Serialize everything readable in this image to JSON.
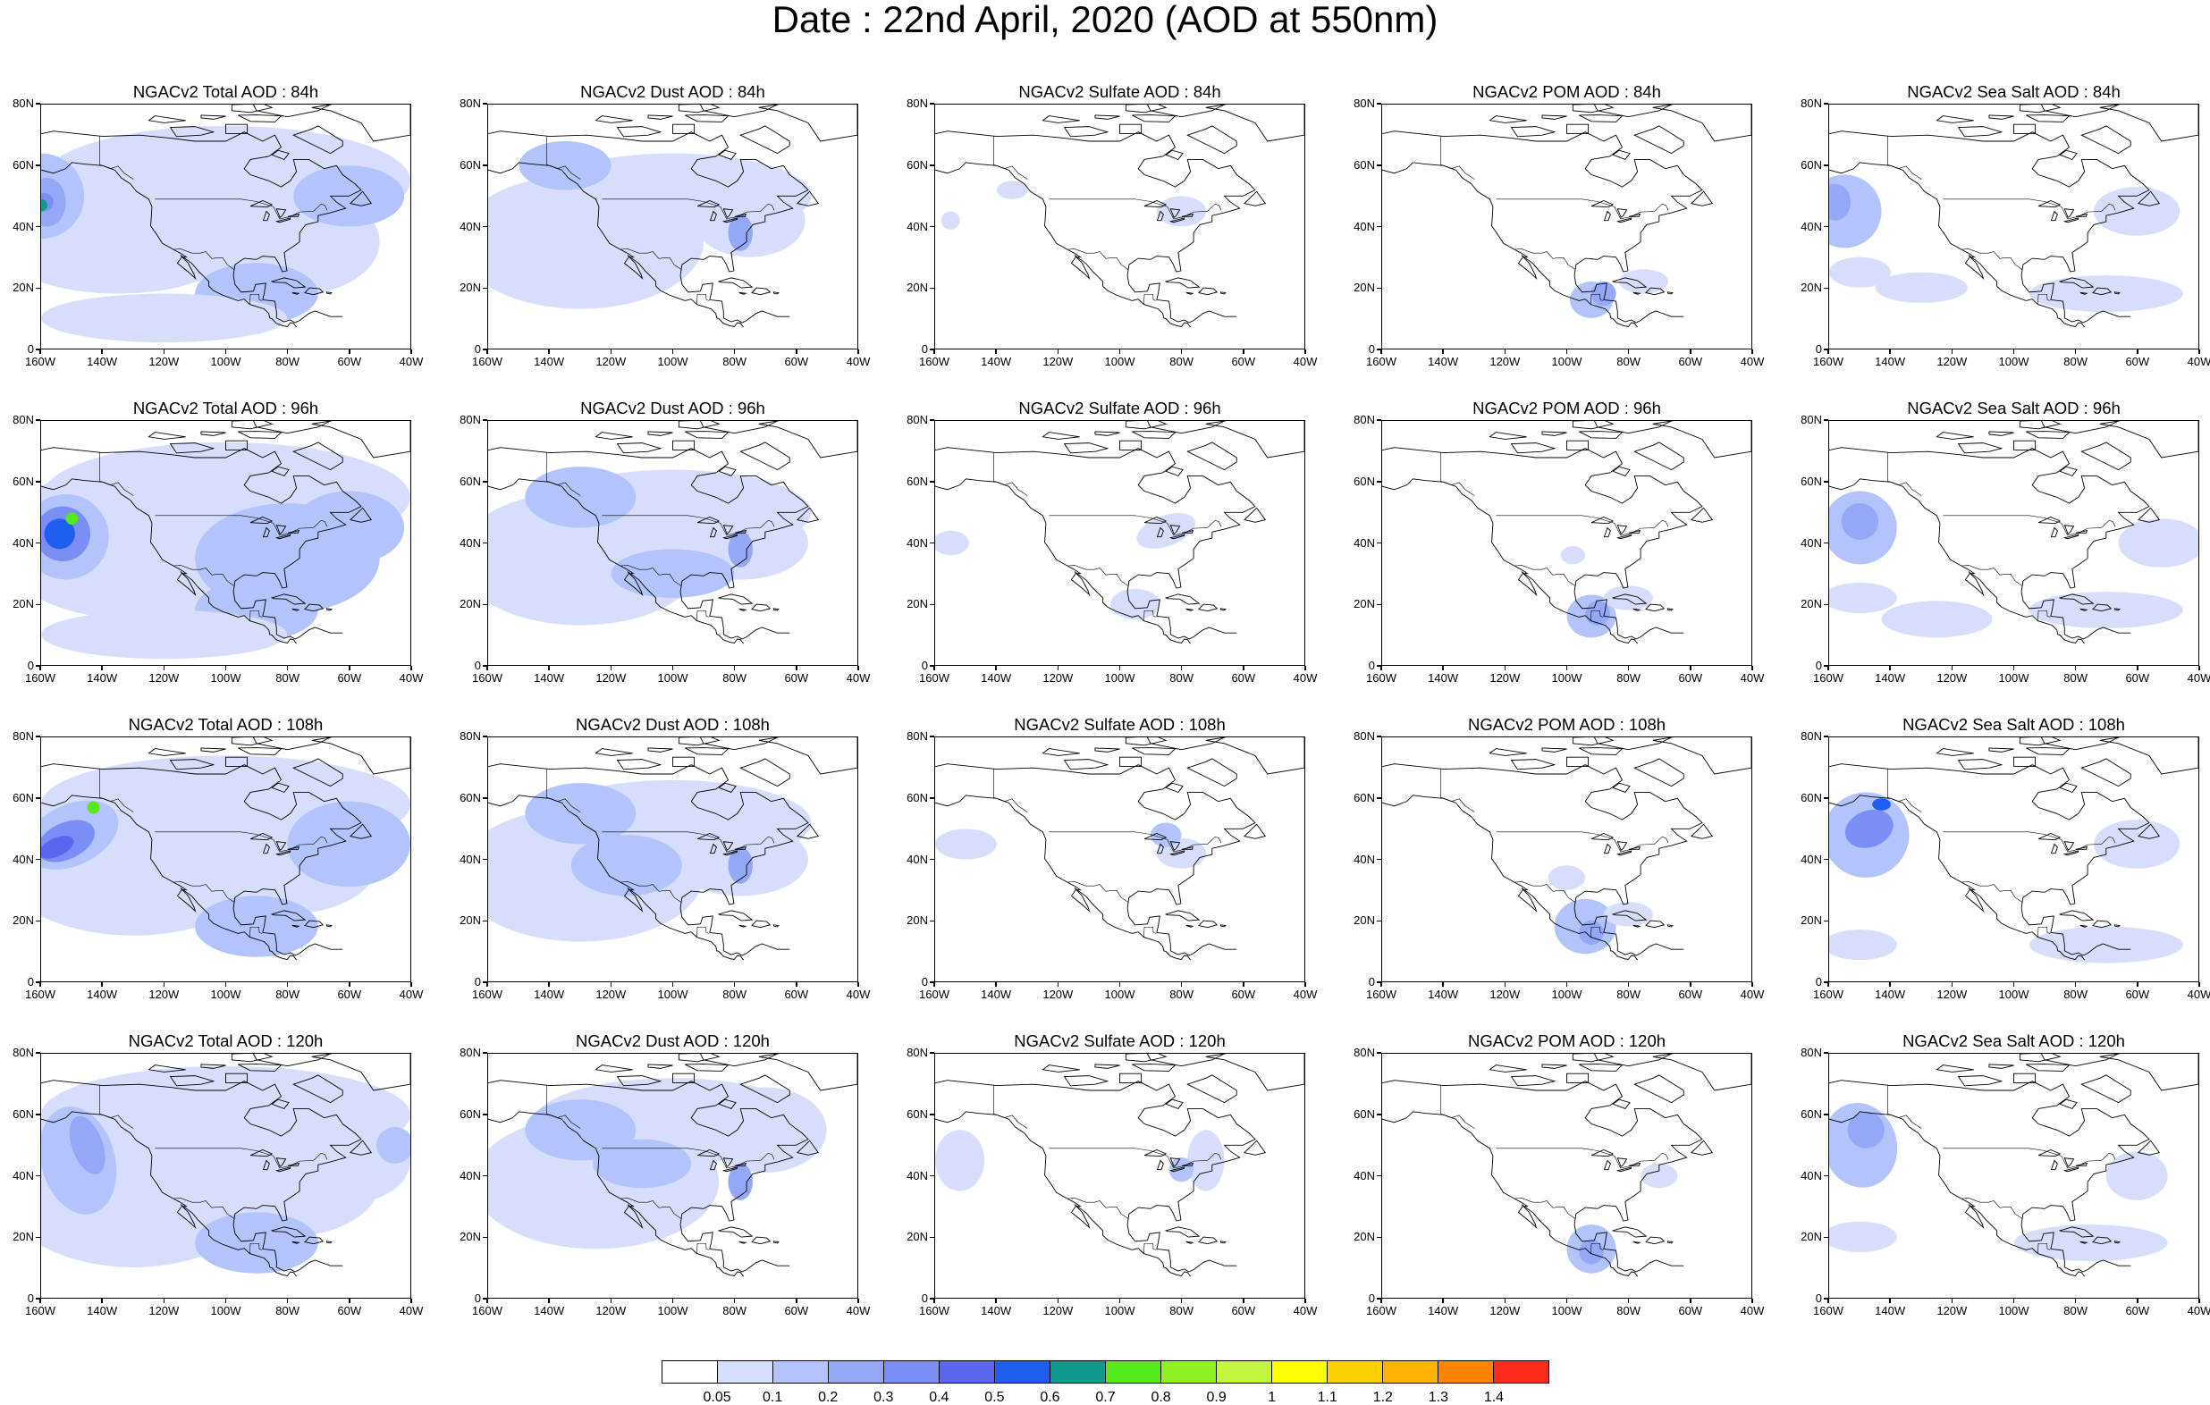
{
  "title": "Date : 22nd April, 2020 (AOD at 550nm)",
  "lat_labels": [
    "80N",
    "60N",
    "40N",
    "20N",
    "0"
  ],
  "lon_labels": [
    "160W",
    "140W",
    "120W",
    "100W",
    "80W",
    "60W",
    "40W"
  ],
  "panels": [
    {
      "title": "NGACv2 Total AOD : 84h",
      "field": "total",
      "hour": 84
    },
    {
      "title": "NGACv2 Dust AOD : 84h",
      "field": "dust",
      "hour": 84
    },
    {
      "title": "NGACv2 Sulfate AOD : 84h",
      "field": "sulfate",
      "hour": 84
    },
    {
      "title": "NGACv2 POM AOD : 84h",
      "field": "pom",
      "hour": 84
    },
    {
      "title": "NGACv2 Sea Salt AOD : 84h",
      "field": "seasalt",
      "hour": 84
    },
    {
      "title": "NGACv2 Total AOD : 96h",
      "field": "total",
      "hour": 96
    },
    {
      "title": "NGACv2 Dust AOD : 96h",
      "field": "dust",
      "hour": 96
    },
    {
      "title": "NGACv2 Sulfate AOD : 96h",
      "field": "sulfate",
      "hour": 96
    },
    {
      "title": "NGACv2 POM AOD : 96h",
      "field": "pom",
      "hour": 96
    },
    {
      "title": "NGACv2 Sea Salt AOD : 96h",
      "field": "seasalt",
      "hour": 96
    },
    {
      "title": "NGACv2 Total AOD : 108h",
      "field": "total",
      "hour": 108
    },
    {
      "title": "NGACv2 Dust AOD : 108h",
      "field": "dust",
      "hour": 108
    },
    {
      "title": "NGACv2 Sulfate AOD : 108h",
      "field": "sulfate",
      "hour": 108
    },
    {
      "title": "NGACv2 POM AOD : 108h",
      "field": "pom",
      "hour": 108
    },
    {
      "title": "NGACv2 Sea Salt AOD : 108h",
      "field": "seasalt",
      "hour": 108
    },
    {
      "title": "NGACv2 Total AOD : 120h",
      "field": "total",
      "hour": 120
    },
    {
      "title": "NGACv2 Dust AOD : 120h",
      "field": "dust",
      "hour": 120
    },
    {
      "title": "NGACv2 Sulfate AOD : 120h",
      "field": "sulfate",
      "hour": 120
    },
    {
      "title": "NGACv2 POM AOD : 120h",
      "field": "pom",
      "hour": 120
    },
    {
      "title": "NGACv2 Sea Salt  AOD : 120h",
      "field": "seasalt",
      "hour": 120
    }
  ],
  "colorbar": {
    "labels": [
      "0.05",
      "0.1",
      "0.2",
      "0.3",
      "0.4",
      "0.5",
      "0.6",
      "0.7",
      "0.8",
      "0.9",
      "1",
      "1.1",
      "1.2",
      "1.3",
      "1.4"
    ],
    "colors": [
      "#ffffff",
      "#d6defc",
      "#b3c3fb",
      "#94a8f7",
      "#7b8ef5",
      "#5b66ee",
      "#1f5ff0",
      "#0f9a8e",
      "#55ea1c",
      "#8ff022",
      "#c4f43e",
      "#ffff00",
      "#ffd000",
      "#ffb000",
      "#ff8400",
      "#ff2a1a"
    ]
  }
}
